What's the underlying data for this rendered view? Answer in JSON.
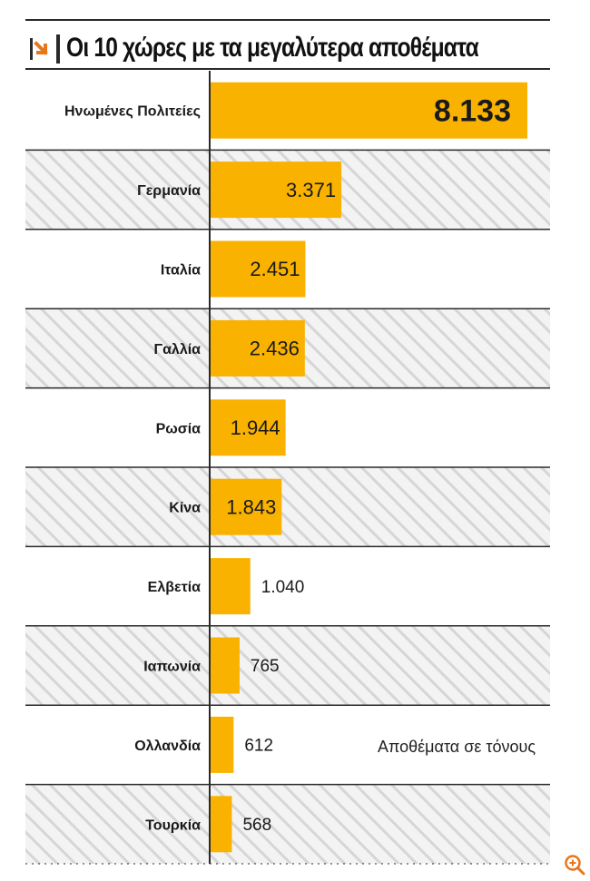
{
  "title": "Οι 10 χώρες με τα μεγαλύτερα αποθέματα",
  "icons": {
    "title": "arrow-down-right-icon",
    "zoom": "zoom-in-icon"
  },
  "colors": {
    "bar": "#F9B200",
    "stripe": "#dcdcdc",
    "rule": "#2a2a2a",
    "accent": "#E8761A"
  },
  "chart_data": {
    "type": "bar",
    "orientation": "horizontal",
    "categories": [
      "Ηνωμένες Πολιτείες",
      "Γερμανία",
      "Ιταλία",
      "Γαλλία",
      "Ρωσία",
      "Κίνα",
      "Ελβετία",
      "Ιαπωνία",
      "Ολλανδία",
      "Τουρκία"
    ],
    "values": [
      8133,
      3371,
      2451,
      2436,
      1944,
      1843,
      1040,
      765,
      612,
      568
    ],
    "value_labels": [
      "8.133",
      "3.371",
      "2.451",
      "2.436",
      "1.944",
      "1.843",
      "1.040",
      "765",
      "612",
      "568"
    ],
    "annotation": "Αποθέματα σε τόνους",
    "xlim": [
      0,
      8133
    ],
    "grid": false
  }
}
